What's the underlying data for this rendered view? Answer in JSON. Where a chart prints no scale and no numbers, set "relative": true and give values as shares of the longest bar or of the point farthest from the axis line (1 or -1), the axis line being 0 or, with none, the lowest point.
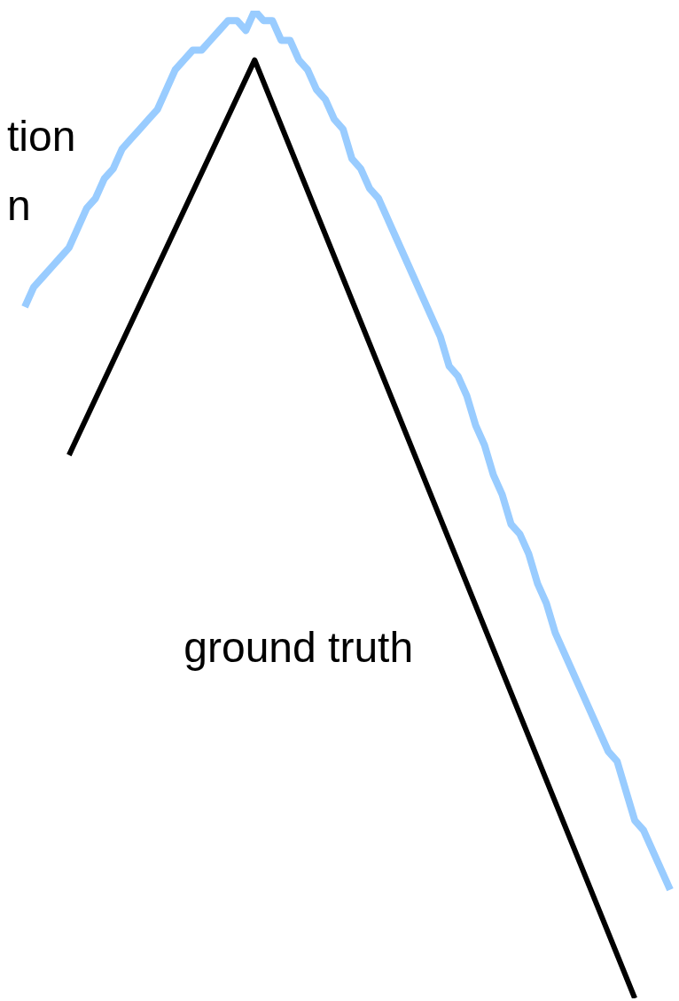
{
  "chart_data": {
    "type": "line",
    "relative": true,
    "categories": [
      null,
      null,
      null,
      null,
      null,
      null,
      null,
      null,
      null,
      null,
      null,
      null,
      null,
      null,
      null,
      null,
      null,
      null,
      null,
      null,
      null,
      null,
      null,
      null,
      null,
      null,
      null,
      null,
      null,
      null,
      null,
      null,
      null,
      null,
      null,
      null,
      null,
      null,
      null,
      null,
      null,
      null,
      null,
      null,
      null,
      null,
      null,
      null,
      null,
      null,
      null,
      null,
      null,
      null,
      null,
      null,
      null,
      null,
      null,
      null,
      null,
      null,
      null,
      null,
      null,
      null,
      null,
      null,
      null,
      null,
      null,
      null,
      null,
      null,
      null
    ],
    "series": [
      {
        "color": "#99ccff",
        "values": [
          0.7,
          0.72,
          0.73,
          0.74,
          0.75,
          0.76,
          0.78,
          0.8,
          0.81,
          0.83,
          0.84,
          0.86,
          0.87,
          0.88,
          0.89,
          0.9,
          0.92,
          0.94,
          0.95,
          0.96,
          0.96,
          0.97,
          0.98,
          0.99,
          0.99,
          0.98,
          1.0,
          0.99,
          0.99,
          0.97,
          0.97,
          0.95,
          0.94,
          0.92,
          0.91,
          0.89,
          0.88,
          0.85,
          0.84,
          0.82,
          0.81,
          0.79,
          0.77,
          0.75,
          0.73,
          0.71,
          0.69,
          0.67,
          0.64,
          0.63,
          0.61,
          0.58,
          0.56,
          0.53,
          0.51,
          0.48,
          0.47,
          0.45,
          0.42,
          0.4,
          0.37,
          0.35,
          0.33,
          0.31,
          0.29,
          0.27,
          0.25,
          0.24,
          0.21,
          0.18,
          0.17,
          0.15,
          0.13,
          0.11,
          null
        ]
      },
      {
        "name": "ground truth",
        "color": "#000000",
        "values": [
          null,
          null,
          null,
          null,
          null,
          0.55,
          null,
          null,
          null,
          null,
          null,
          null,
          null,
          null,
          null,
          null,
          null,
          null,
          null,
          null,
          null,
          null,
          null,
          null,
          null,
          null,
          0.95,
          null,
          null,
          null,
          null,
          null,
          null,
          null,
          null,
          null,
          null,
          null,
          null,
          null,
          null,
          null,
          null,
          null,
          null,
          null,
          null,
          null,
          null,
          null,
          null,
          null,
          null,
          null,
          null,
          null,
          null,
          null,
          null,
          null,
          null,
          null,
          null,
          null,
          null,
          null,
          null,
          null,
          null,
          0.0,
          null,
          null,
          null,
          null,
          null
        ]
      }
    ],
    "annotations": [
      "tion",
      "n"
    ],
    "legend": false,
    "grid": false,
    "marker": "none",
    "line_style": "solid"
  }
}
